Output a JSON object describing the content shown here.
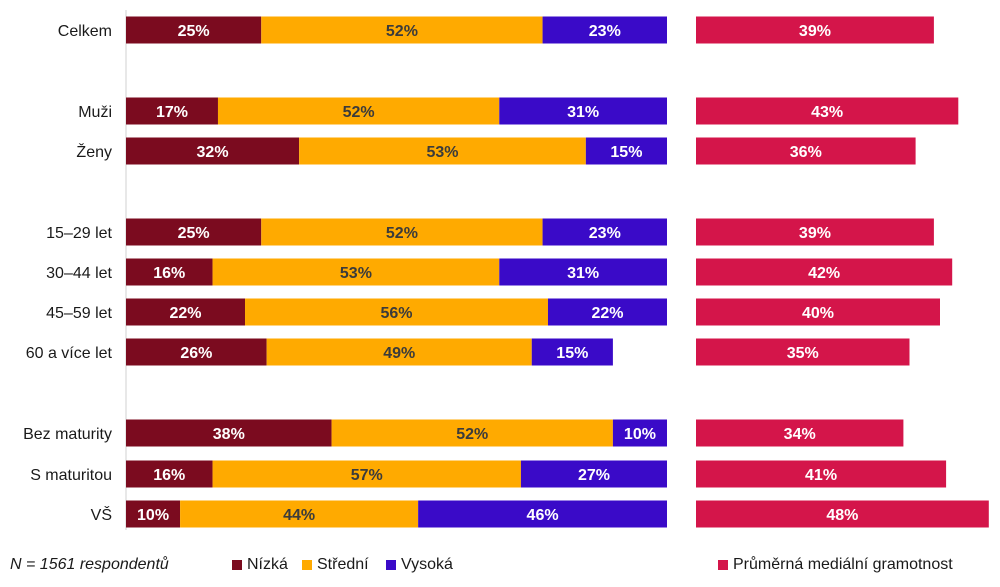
{
  "chart_data": {
    "type": "bar",
    "stacked": true,
    "categories": [
      "Celkem",
      "Muži",
      "Ženy",
      "15–29 let",
      "30–44 let",
      "45–59 let",
      "60 a více let",
      "Bez maturity",
      "S maturitou",
      "VŠ"
    ],
    "series": [
      {
        "name": "Nízká",
        "color": "#7b0b1f",
        "values": [
          25,
          17,
          32,
          25,
          16,
          22,
          26,
          38,
          16,
          10
        ]
      },
      {
        "name": "Střední",
        "color": "#ffaa00",
        "values": [
          52,
          52,
          53,
          52,
          53,
          56,
          49,
          52,
          57,
          44
        ]
      },
      {
        "name": "Vysoká",
        "color": "#3a0ac8",
        "values": [
          23,
          31,
          15,
          23,
          31,
          22,
          15,
          10,
          27,
          46
        ]
      }
    ],
    "average": {
      "name": "Průměrná mediální gramotnost",
      "color": "#d4154a",
      "values": [
        39,
        43,
        36,
        39,
        42,
        40,
        35,
        34,
        41,
        48
      ]
    },
    "value_suffix": "%",
    "note": "N = 1561 respondentů"
  }
}
